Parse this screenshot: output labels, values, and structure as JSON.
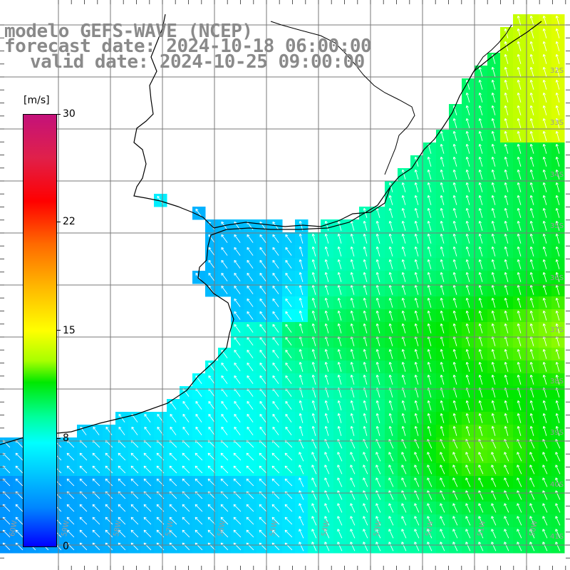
{
  "title": {
    "line1": "modelo GEFS-WAVE (NCEP)",
    "line2": "forecast date: 2024-10-18 06:00:00",
    "line3": "valid date: 2024-10-25 09:00:00"
  },
  "colorbar": {
    "unit": "[m/s]",
    "ticks": [
      "30",
      "22",
      "15",
      "8",
      "0"
    ],
    "min": 0,
    "max": 30
  },
  "lat_labels": [
    "32S",
    "33S",
    "34S",
    "35S",
    "36S",
    "37S",
    "38S",
    "39S",
    "40S",
    "41S"
  ],
  "lon_labels": [
    "60W",
    "59W",
    "58W",
    "57W",
    "56W",
    "55W",
    "54W",
    "53W",
    "52W",
    "51W",
    "50W"
  ],
  "colors": {
    "land": "#ffffff",
    "grid": "#808080",
    "coast": "#000000",
    "arrows": "#ffffff",
    "title": "#8a8a8a"
  }
}
